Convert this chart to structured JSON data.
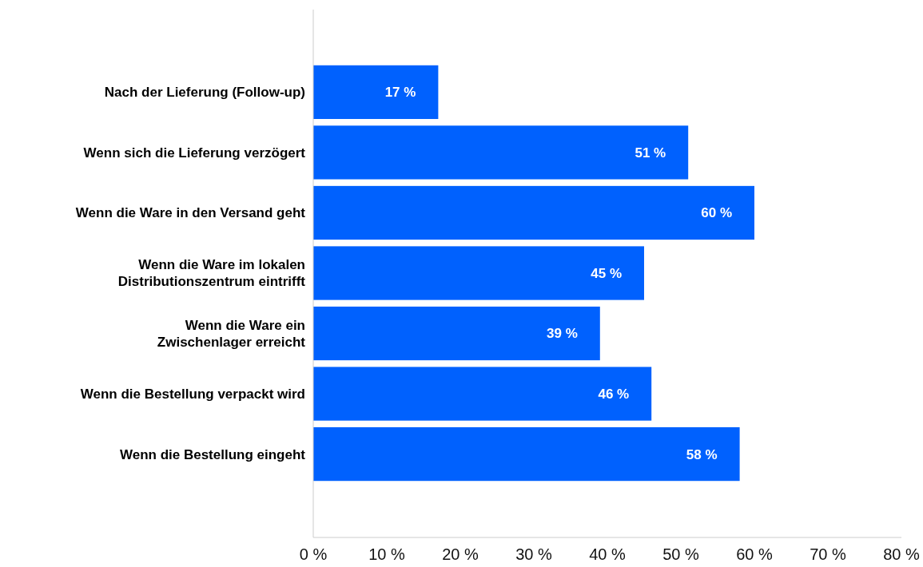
{
  "chart_data": {
    "type": "bar",
    "orientation": "horizontal",
    "categories": [
      "Nach der Lieferung (Follow-up)",
      "Wenn sich die Lieferung verzögert",
      "Wenn die Ware in den Versand geht",
      "Wenn die Ware im lokalen Distributionszentrum eintrifft",
      "Wenn die Ware ein Zwischenlager erreicht",
      "Wenn die Bestellung verpackt wird",
      "Wenn die Bestellung eingeht"
    ],
    "values": [
      17,
      51,
      60,
      45,
      39,
      46,
      58
    ],
    "value_labels": [
      "17 %",
      "51 %",
      "60 %",
      "45 %",
      "39 %",
      "46 %",
      "58 %"
    ],
    "color": "#0061fe",
    "xlim": [
      0,
      80
    ],
    "xticks": [
      {
        "value": 0,
        "label": "0 %"
      },
      {
        "value": 10,
        "label": "10 %"
      },
      {
        "value": 20,
        "label": "20 %"
      },
      {
        "value": 30,
        "label": "30 %"
      },
      {
        "value": 40,
        "label": "40 %"
      },
      {
        "value": 50,
        "label": "50 %"
      },
      {
        "value": 60,
        "label": "60 %"
      },
      {
        "value": 70,
        "label": "70 %"
      },
      {
        "value": 80,
        "label": "80 %"
      }
    ],
    "grid": false
  }
}
